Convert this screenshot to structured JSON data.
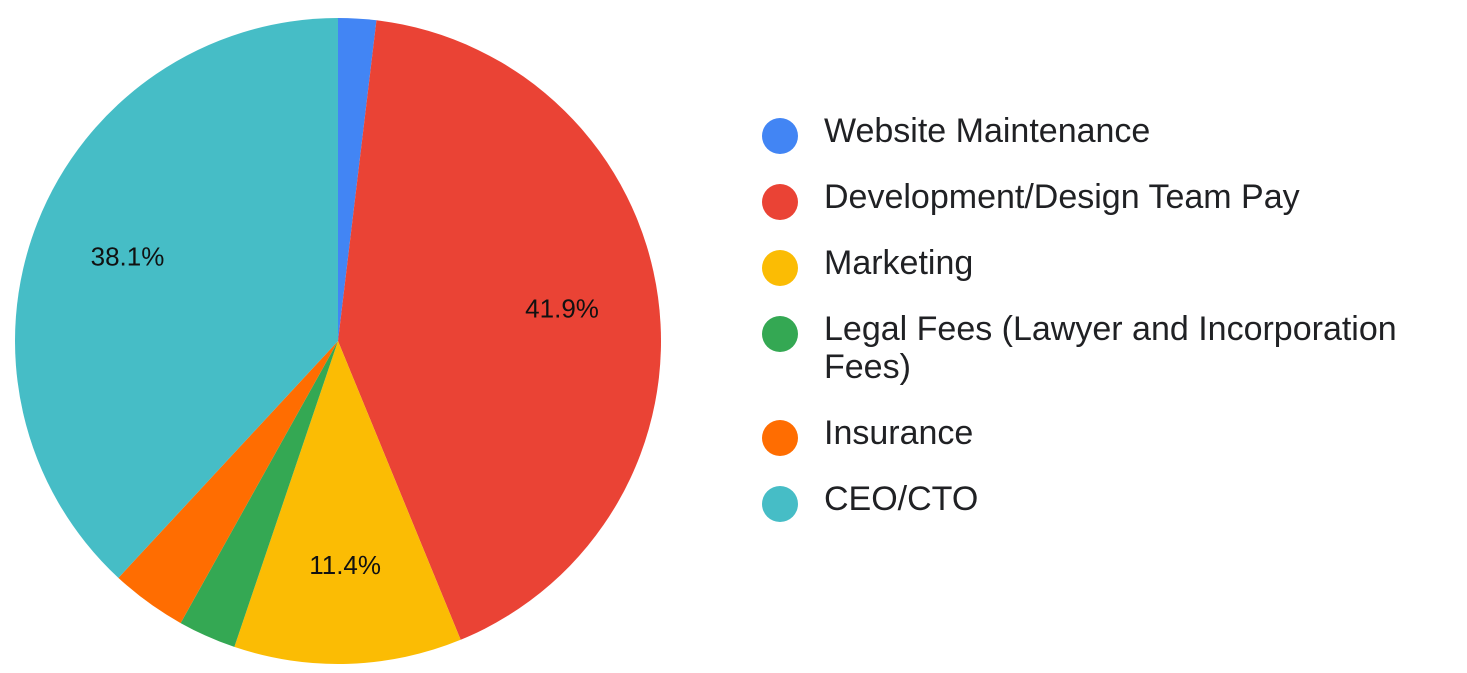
{
  "chart_data": {
    "type": "pie",
    "title": "",
    "legend_position": "right",
    "start_angle_deg": 0,
    "direction": "clockwise",
    "slices": [
      {
        "label": "Website Maintenance",
        "value": 1.9,
        "color": "#4285f4",
        "data_label": ""
      },
      {
        "label": "Development/Design Team Pay",
        "value": 41.9,
        "color": "#ea4335",
        "data_label": "41.9%"
      },
      {
        "label": "Marketing",
        "value": 11.4,
        "color": "#fbbc04",
        "data_label": "11.4%"
      },
      {
        "label": "Legal Fees (Lawyer and Incorporation Fees)",
        "value": 2.9,
        "color": "#34a853",
        "data_label": ""
      },
      {
        "label": "Insurance",
        "value": 3.8,
        "color": "#ff6d01",
        "data_label": ""
      },
      {
        "label": "CEO/CTO",
        "value": 38.1,
        "color": "#46bdc6",
        "data_label": "38.1%"
      }
    ]
  }
}
